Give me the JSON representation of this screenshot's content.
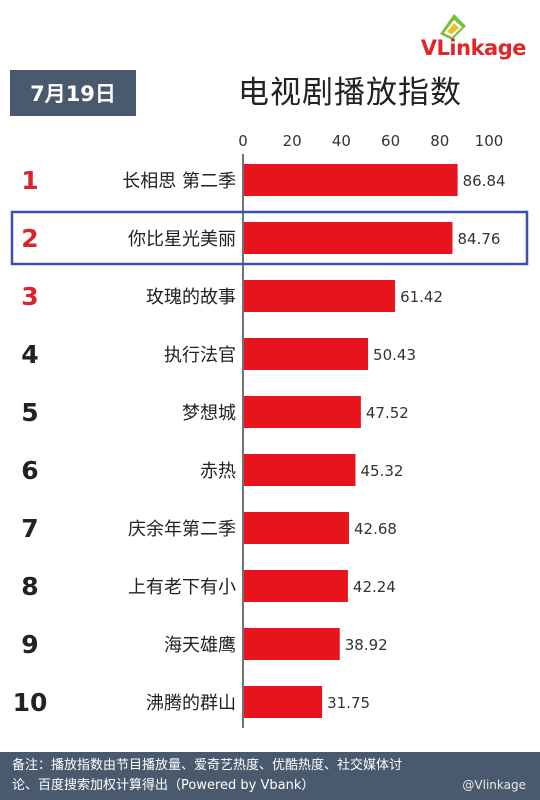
{
  "header": {
    "date": "7月19日",
    "title": "电视剧播放指数",
    "logo": "VLinkage"
  },
  "chart_data": {
    "type": "bar",
    "orientation": "horizontal",
    "title": "电视剧播放指数",
    "xlim": [
      0,
      100
    ],
    "x_ticks": [
      0,
      20,
      40,
      60,
      80,
      100
    ],
    "grid": false,
    "bar_color": "#e8141d",
    "ranks": [
      "1",
      "2",
      "3",
      "4",
      "5",
      "6",
      "7",
      "8",
      "9",
      "10"
    ],
    "categories": [
      "长相思 第二季",
      "你比星光美丽",
      "玫瑰的故事",
      "执行法官",
      "梦想城",
      "赤热",
      "庆余年第二季",
      "上有老下有小",
      "海天雄鹰",
      "沸腾的群山"
    ],
    "values": [
      86.84,
      84.76,
      61.42,
      50.43,
      47.52,
      45.32,
      42.68,
      42.24,
      38.92,
      31.75
    ],
    "value_labels": [
      "86.84",
      "84.76",
      "61.42",
      "50.43",
      "47.52",
      "45.32",
      "42.68",
      "42.24",
      "38.92",
      "31.75"
    ],
    "highlight_index": 1,
    "highlight_color": "#3d4fb0",
    "top_rank_color": "#d9262d",
    "rank_color": "#222222"
  },
  "footer": {
    "note": "备注：播放指数由节目播放量、爱奇艺热度、优酷热度、社交媒体讨论、百度搜索加权计算得出（Powered by Vbank）",
    "watermark": "@Vlinkage"
  }
}
